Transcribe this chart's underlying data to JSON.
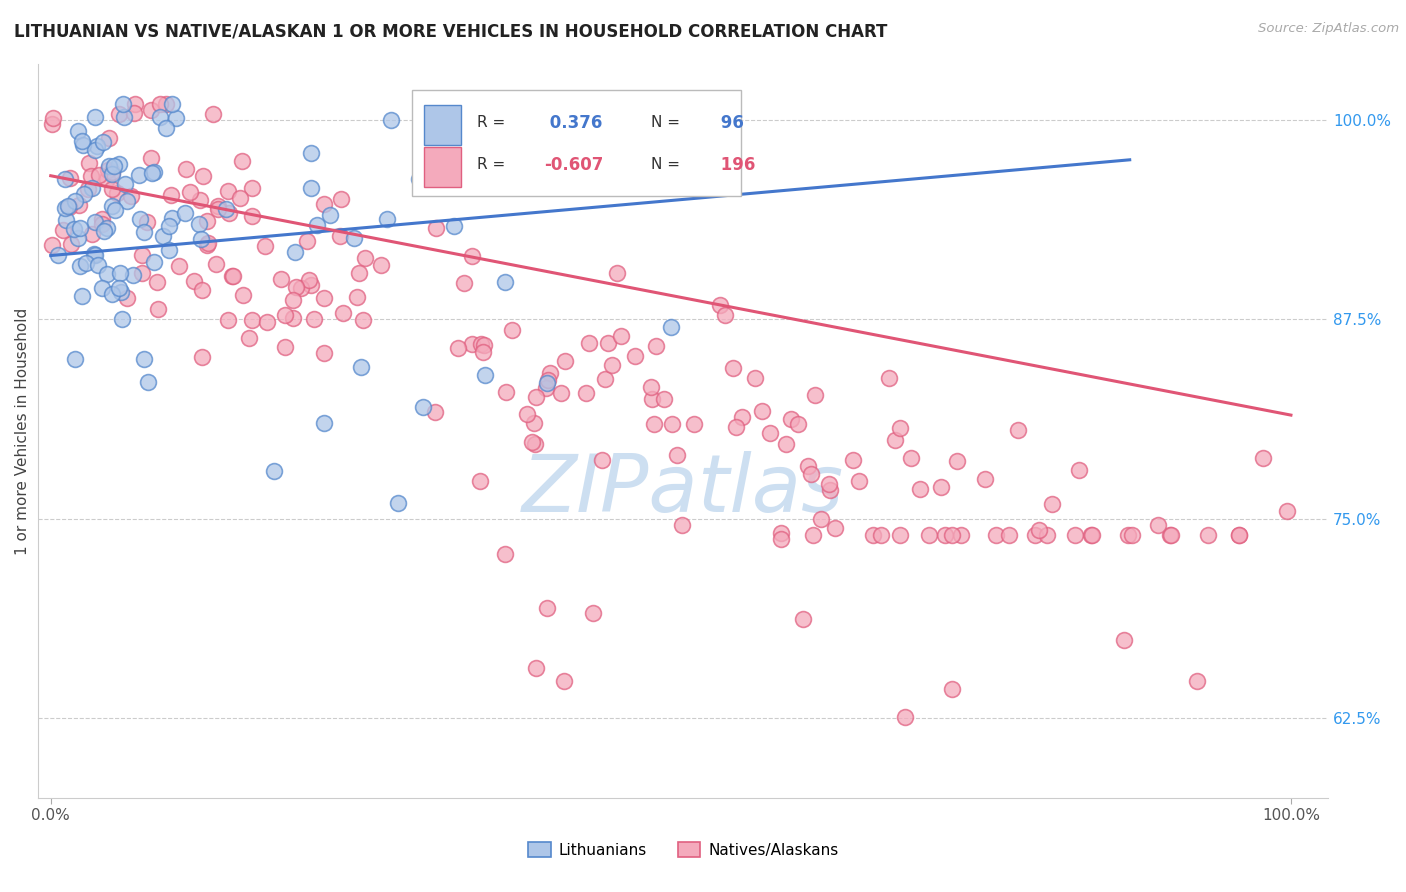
{
  "title": "LITHUANIAN VS NATIVE/ALASKAN 1 OR MORE VEHICLES IN HOUSEHOLD CORRELATION CHART",
  "source": "Source: ZipAtlas.com",
  "ylabel": "1 or more Vehicles in Household",
  "xlim": [
    -0.01,
    1.03
  ],
  "ylim": [
    0.575,
    1.035
  ],
  "y_tick_vals": [
    0.625,
    0.75,
    0.875,
    1.0
  ],
  "y_tick_labels": [
    "62.5%",
    "75.0%",
    "87.5%",
    "100.0%"
  ],
  "x_tick_vals": [
    0.0,
    1.0
  ],
  "x_tick_labels": [
    "0.0%",
    "100.0%"
  ],
  "blue_R": 0.376,
  "blue_N": 96,
  "pink_R": -0.607,
  "pink_N": 196,
  "blue_fill": "#AEC6E8",
  "blue_edge": "#5588CC",
  "pink_fill": "#F4AABC",
  "pink_edge": "#E06080",
  "blue_line": "#4477CC",
  "pink_line": "#E05575",
  "bg_color": "#FFFFFF",
  "grid_color": "#CCCCCC",
  "watermark_color": "#DDEEFF",
  "blue_line_x0": 0.0,
  "blue_line_x1": 0.87,
  "blue_line_y0": 0.915,
  "blue_line_y1": 0.975,
  "pink_line_x0": 0.0,
  "pink_line_x1": 1.0,
  "pink_line_y0": 0.965,
  "pink_line_y1": 0.815
}
